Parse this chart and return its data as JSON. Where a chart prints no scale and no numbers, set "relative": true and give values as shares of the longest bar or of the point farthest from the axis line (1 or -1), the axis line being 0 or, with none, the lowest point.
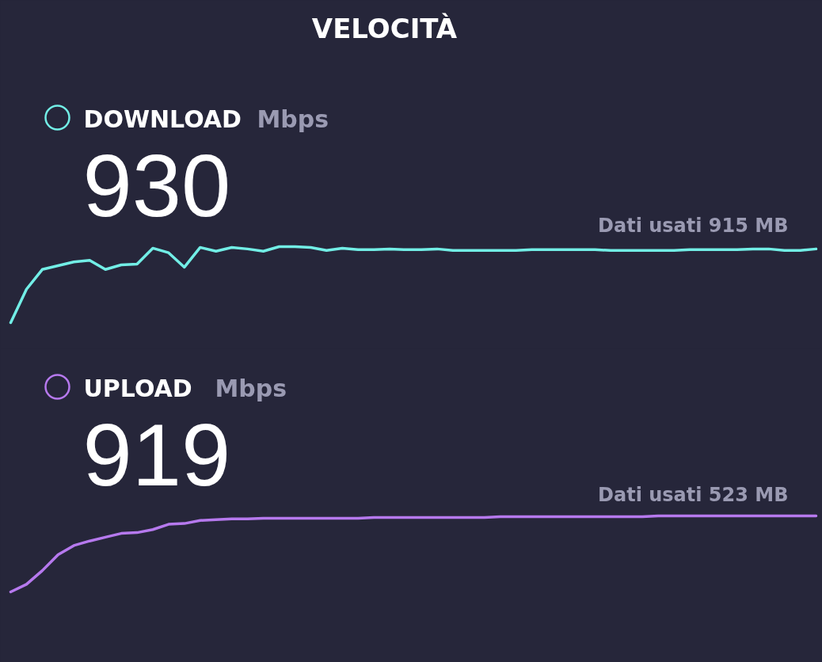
{
  "chart_data": [
    {
      "type": "line",
      "title": "VELOCITÀ",
      "ylabel": "Mbps",
      "relative": true,
      "annotations": [
        "930",
        "Dati usati 915 MB"
      ],
      "categories": [
        null,
        null,
        null,
        null,
        null,
        null,
        null,
        null,
        null,
        null,
        null,
        null,
        null,
        null,
        null,
        null,
        null,
        null,
        null,
        null,
        null,
        null,
        null,
        null,
        null,
        null,
        null,
        null,
        null,
        null,
        null,
        null,
        null,
        null,
        null,
        null,
        null,
        null,
        null,
        null,
        null,
        null,
        null,
        null,
        null,
        null,
        null,
        null,
        null,
        null,
        null,
        null
      ],
      "series": [
        {
          "name": "DOWNLOAD",
          "color": "#72eee6",
          "values": [
            0,
            0.44,
            0.7,
            0.75,
            0.8,
            0.82,
            0.7,
            0.76,
            0.77,
            0.98,
            0.92,
            0.73,
            0.99,
            0.94,
            0.99,
            0.97,
            0.94,
            1.0,
            1.0,
            0.99,
            0.95,
            0.98,
            0.96,
            0.96,
            0.97,
            0.96,
            0.96,
            0.97,
            0.95,
            0.95,
            0.95,
            0.95,
            0.95,
            0.96,
            0.96,
            0.96,
            0.96,
            0.96,
            0.95,
            0.95,
            0.95,
            0.95,
            0.95,
            0.96,
            0.96,
            0.96,
            0.96,
            0.97,
            0.97,
            0.95,
            0.95,
            0.97
          ]
        }
      ]
    },
    {
      "type": "line",
      "ylabel": "Mbps",
      "relative": true,
      "annotations": [
        "919",
        "Dati usati 523 MB"
      ],
      "categories": [
        null,
        null,
        null,
        null,
        null,
        null,
        null,
        null,
        null,
        null,
        null,
        null,
        null,
        null,
        null,
        null,
        null,
        null,
        null,
        null,
        null,
        null,
        null,
        null,
        null,
        null,
        null,
        null,
        null,
        null,
        null,
        null,
        null,
        null,
        null,
        null,
        null,
        null,
        null,
        null,
        null,
        null,
        null,
        null,
        null,
        null,
        null,
        null,
        null,
        null,
        null,
        null
      ],
      "series": [
        {
          "name": "UPLOAD",
          "color": "#b679ee",
          "values": [
            0,
            0.1,
            0.28,
            0.49,
            0.61,
            0.67,
            0.72,
            0.77,
            0.78,
            0.82,
            0.89,
            0.9,
            0.94,
            0.95,
            0.96,
            0.96,
            0.97,
            0.97,
            0.97,
            0.97,
            0.97,
            0.97,
            0.97,
            0.98,
            0.98,
            0.98,
            0.98,
            0.98,
            0.98,
            0.98,
            0.98,
            0.99,
            0.99,
            0.99,
            0.99,
            0.99,
            0.99,
            0.99,
            0.99,
            0.99,
            0.99,
            1.0,
            1.0,
            1.0,
            1.0,
            1.0,
            1.0,
            1.0,
            1.0,
            1.0,
            1.0,
            1.0
          ]
        }
      ]
    }
  ]
}
